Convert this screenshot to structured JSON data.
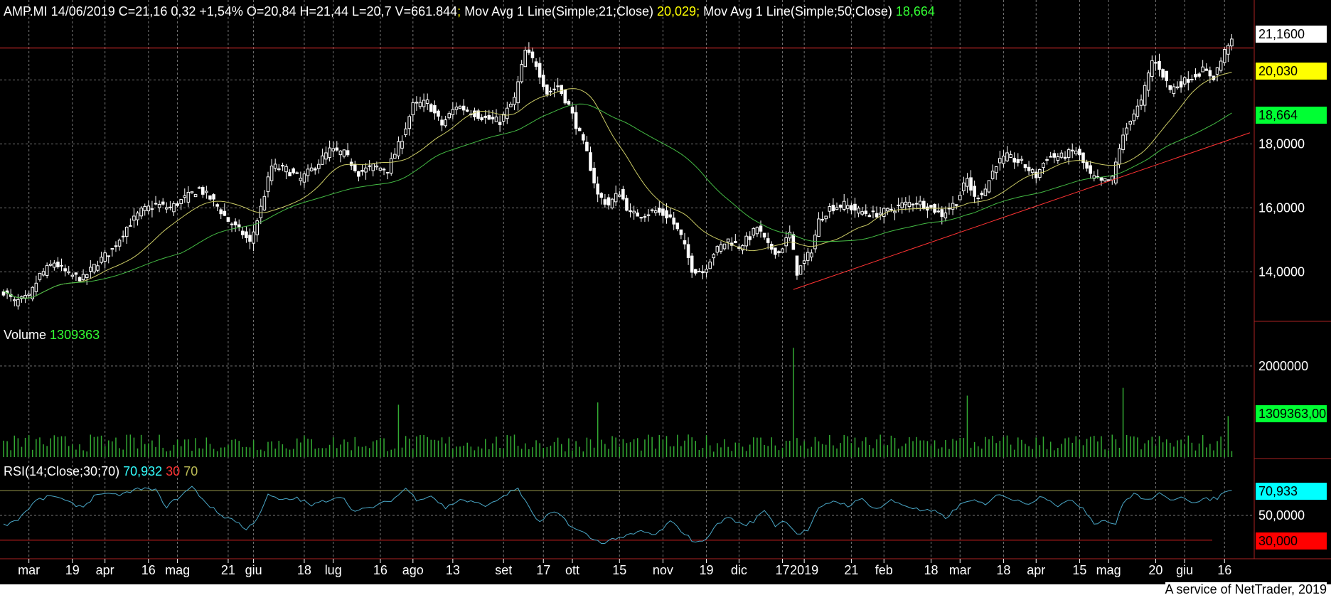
{
  "header": {
    "symbol_line": "AMP.MI 14/06/2019 C=21,16 0,32 +1,54% O=20,84 H=21,44 L=20,7 V=661.844",
    "ma21_label": " Mov Avg 1 Line(Simple;21;Close) ",
    "ma21_value": "20,029",
    "ma50_label": " Mov Avg 1 Line(Simple;50;Close) ",
    "ma50_value": "18,664",
    "separator": ";"
  },
  "volume_panel": {
    "label": "Volume ",
    "value": "1309363"
  },
  "rsi_panel": {
    "label": "RSI(14;Close;30;70) ",
    "value": "70,932",
    "low": "30",
    "high": "70"
  },
  "footer": "A service of NetTrader, 2019",
  "price_tags": [
    {
      "text": "21,1600",
      "bg": "#ffffff"
    },
    {
      "text": "20,030",
      "bg": "#ffff00"
    },
    {
      "text": "18,664",
      "bg": "#00ff33"
    }
  ],
  "volume_tag": {
    "text": "1309363,00",
    "bg": "#00ff33"
  },
  "rsi_tags": [
    {
      "text": "70,933",
      "bg": "#00ffff"
    },
    {
      "text": "30,000",
      "bg": "#ff0000"
    }
  ],
  "colors": {
    "background": "#000000",
    "grid": "#777777",
    "candles": "#ffffff",
    "ma21": "#cccc66",
    "ma50": "#44bb44",
    "volume": "#33aa33",
    "rsi": "#4aa8c8",
    "resistance": "#ff3333",
    "trendline": "#ff3333"
  },
  "chart_data": [
    {
      "type": "candlestick",
      "title": "AMP.MI",
      "ylim": [
        12.5,
        22.5
      ],
      "y_ticks": [
        "14,0000",
        "16,0000",
        "18,0000"
      ],
      "y_tick_values": [
        14,
        16,
        18
      ],
      "x_tick_labels": [
        "mar",
        "19",
        "apr",
        "16",
        "mag",
        "21",
        "giu",
        "18",
        "lug",
        "16",
        "ago",
        "13",
        "set",
        "17",
        "ott",
        "15",
        "nov",
        "19",
        "dic",
        "17",
        "2019",
        "21",
        "feb",
        "18",
        "mar",
        "18",
        "apr",
        "15",
        "mag",
        "20",
        "giu",
        "16"
      ],
      "x_tick_index": [
        7,
        19,
        28,
        40,
        48,
        62,
        69,
        83,
        91,
        104,
        113,
        124,
        138,
        149,
        157,
        170,
        182,
        194,
        203,
        215,
        221,
        234,
        243,
        256,
        264,
        276,
        285,
        297,
        305,
        318,
        326,
        337
      ],
      "resistance": 21.0,
      "trendline": {
        "start": [
          218,
          13.45
        ],
        "end": [
          344,
          18.35
        ]
      },
      "close_points": [
        [
          0,
          13.4
        ],
        [
          3,
          13.05
        ],
        [
          7,
          13.2
        ],
        [
          10,
          13.9
        ],
        [
          14,
          14.3
        ],
        [
          18,
          13.9
        ],
        [
          22,
          13.8
        ],
        [
          26,
          14.3
        ],
        [
          30,
          14.7
        ],
        [
          34,
          15.4
        ],
        [
          38,
          15.9
        ],
        [
          42,
          16.1
        ],
        [
          46,
          16.0
        ],
        [
          50,
          16.3
        ],
        [
          54,
          16.6
        ],
        [
          58,
          16.2
        ],
        [
          62,
          15.6
        ],
        [
          66,
          15.2
        ],
        [
          68,
          14.9
        ],
        [
          71,
          16.0
        ],
        [
          74,
          17.3
        ],
        [
          78,
          17.2
        ],
        [
          82,
          16.9
        ],
        [
          86,
          17.3
        ],
        [
          90,
          17.8
        ],
        [
          94,
          17.7
        ],
        [
          98,
          17.1
        ],
        [
          102,
          17.3
        ],
        [
          106,
          17.2
        ],
        [
          110,
          18.2
        ],
        [
          113,
          19.2
        ],
        [
          117,
          19.3
        ],
        [
          121,
          18.6
        ],
        [
          125,
          19.2
        ],
        [
          129,
          19.0
        ],
        [
          133,
          18.8
        ],
        [
          137,
          18.7
        ],
        [
          141,
          19.4
        ],
        [
          144,
          20.9
        ],
        [
          147,
          20.5
        ],
        [
          150,
          19.6
        ],
        [
          153,
          19.8
        ],
        [
          156,
          19.2
        ],
        [
          158,
          18.6
        ],
        [
          161,
          17.7
        ],
        [
          164,
          16.4
        ],
        [
          167,
          16.1
        ],
        [
          170,
          16.5
        ],
        [
          173,
          15.8
        ],
        [
          176,
          15.8
        ],
        [
          180,
          15.9
        ],
        [
          184,
          15.7
        ],
        [
          187,
          15.1
        ],
        [
          190,
          14.1
        ],
        [
          193,
          14.0
        ],
        [
          196,
          14.6
        ],
        [
          200,
          15.0
        ],
        [
          203,
          14.8
        ],
        [
          206,
          15.1
        ],
        [
          208,
          15.4
        ],
        [
          211,
          14.8
        ],
        [
          214,
          14.6
        ],
        [
          217,
          15.2
        ],
        [
          219,
          14.0
        ],
        [
          221,
          14.3
        ],
        [
          223,
          14.7
        ],
        [
          225,
          15.6
        ],
        [
          228,
          16.0
        ],
        [
          232,
          16.1
        ],
        [
          236,
          15.9
        ],
        [
          240,
          15.8
        ],
        [
          244,
          15.9
        ],
        [
          248,
          16.1
        ],
        [
          252,
          16.2
        ],
        [
          256,
          16.0
        ],
        [
          259,
          15.8
        ],
        [
          263,
          16.2
        ],
        [
          266,
          16.9
        ],
        [
          268,
          16.3
        ],
        [
          271,
          16.6
        ],
        [
          274,
          17.4
        ],
        [
          277,
          17.6
        ],
        [
          281,
          17.4
        ],
        [
          285,
          17.0
        ],
        [
          288,
          17.6
        ],
        [
          292,
          17.6
        ],
        [
          296,
          17.8
        ],
        [
          298,
          17.4
        ],
        [
          300,
          17.0
        ],
        [
          303,
          16.8
        ],
        [
          306,
          16.9
        ],
        [
          308,
          17.9
        ],
        [
          311,
          18.8
        ],
        [
          314,
          19.3
        ],
        [
          317,
          20.6
        ],
        [
          319,
          20.4
        ],
        [
          322,
          19.7
        ],
        [
          325,
          19.9
        ],
        [
          328,
          20.1
        ],
        [
          331,
          20.3
        ],
        [
          334,
          20.1
        ],
        [
          336,
          20.6
        ],
        [
          338,
          21.16
        ]
      ],
      "series": [
        {
          "name": "Mov Avg 1 Line(Simple;21;Close)",
          "last": "20,029"
        },
        {
          "name": "Mov Avg 1 Line(Simple;50;Close)",
          "last": "18,664"
        }
      ]
    },
    {
      "type": "bar",
      "title": "Volume",
      "ylim": [
        0,
        2700000
      ],
      "y_ticks": [
        "2000000"
      ],
      "y_tick_values": [
        2000000
      ],
      "spikes": [
        [
          109,
          1150000
        ],
        [
          164,
          1200000
        ],
        [
          218,
          2400000
        ],
        [
          266,
          1350000
        ],
        [
          309,
          1520000
        ],
        [
          338,
          900000
        ]
      ]
    },
    {
      "type": "line",
      "title": "RSI(14;Close;30;70)",
      "ylim": [
        15,
        85
      ],
      "y_ticks": [
        "50,0000"
      ],
      "y_tick_values": [
        50
      ],
      "levels": [
        30,
        70
      ],
      "points": [
        [
          0,
          42
        ],
        [
          4,
          47
        ],
        [
          9,
          62
        ],
        [
          14,
          66
        ],
        [
          18,
          60
        ],
        [
          22,
          57
        ],
        [
          26,
          68
        ],
        [
          30,
          66
        ],
        [
          34,
          68
        ],
        [
          38,
          72
        ],
        [
          42,
          70
        ],
        [
          45,
          57
        ],
        [
          48,
          64
        ],
        [
          52,
          73
        ],
        [
          56,
          60
        ],
        [
          60,
          50
        ],
        [
          64,
          46
        ],
        [
          67,
          38
        ],
        [
          70,
          48
        ],
        [
          73,
          66
        ],
        [
          77,
          62
        ],
        [
          81,
          64
        ],
        [
          85,
          58
        ],
        [
          89,
          62
        ],
        [
          93,
          66
        ],
        [
          97,
          53
        ],
        [
          101,
          56
        ],
        [
          105,
          60
        ],
        [
          108,
          64
        ],
        [
          111,
          72
        ],
        [
          114,
          63
        ],
        [
          118,
          66
        ],
        [
          122,
          56
        ],
        [
          126,
          63
        ],
        [
          130,
          60
        ],
        [
          134,
          58
        ],
        [
          138,
          66
        ],
        [
          142,
          72
        ],
        [
          145,
          56
        ],
        [
          148,
          44
        ],
        [
          151,
          52
        ],
        [
          154,
          50
        ],
        [
          157,
          40
        ],
        [
          160,
          36
        ],
        [
          163,
          30
        ],
        [
          166,
          28
        ],
        [
          169,
          32
        ],
        [
          172,
          33
        ],
        [
          176,
          37
        ],
        [
          180,
          34
        ],
        [
          184,
          45
        ],
        [
          187,
          38
        ],
        [
          190,
          30
        ],
        [
          193,
          28
        ],
        [
          196,
          40
        ],
        [
          200,
          49
        ],
        [
          204,
          42
        ],
        [
          207,
          45
        ],
        [
          210,
          55
        ],
        [
          213,
          42
        ],
        [
          216,
          46
        ],
        [
          219,
          35
        ],
        [
          222,
          38
        ],
        [
          225,
          55
        ],
        [
          229,
          62
        ],
        [
          233,
          58
        ],
        [
          237,
          63
        ],
        [
          241,
          55
        ],
        [
          245,
          62
        ],
        [
          249,
          58
        ],
        [
          253,
          54
        ],
        [
          257,
          53
        ],
        [
          260,
          48
        ],
        [
          264,
          58
        ],
        [
          267,
          63
        ],
        [
          271,
          58
        ],
        [
          275,
          68
        ],
        [
          279,
          62
        ],
        [
          283,
          60
        ],
        [
          287,
          66
        ],
        [
          291,
          58
        ],
        [
          295,
          62
        ],
        [
          298,
          56
        ],
        [
          301,
          44
        ],
        [
          304,
          46
        ],
        [
          307,
          43
        ],
        [
          309,
          60
        ],
        [
          312,
          68
        ],
        [
          315,
          62
        ],
        [
          319,
          67
        ],
        [
          322,
          62
        ],
        [
          325,
          66
        ],
        [
          329,
          60
        ],
        [
          332,
          63
        ],
        [
          335,
          64
        ],
        [
          338,
          70.9
        ]
      ]
    }
  ]
}
